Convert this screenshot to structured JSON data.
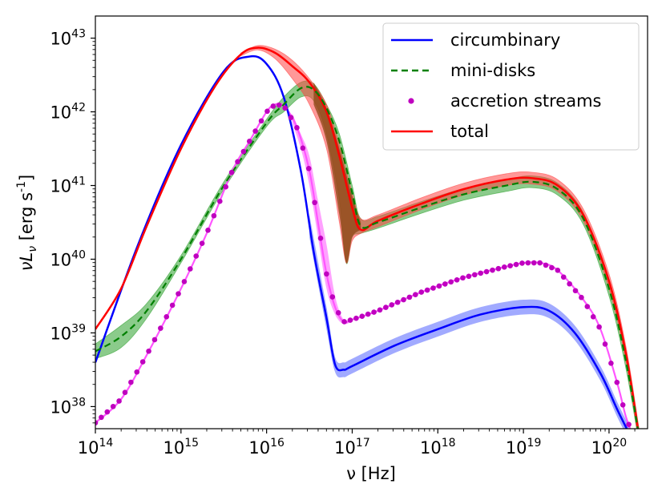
{
  "chart_data": {
    "type": "line",
    "xscale": "log",
    "yscale": "log",
    "xlim_exp": [
      14,
      20.45
    ],
    "ylim_exp": [
      37.7,
      43.3
    ],
    "x_ticks": [
      {
        "exp": 14,
        "label": "10",
        "sup": "14"
      },
      {
        "exp": 15,
        "label": "10",
        "sup": "15"
      },
      {
        "exp": 16,
        "label": "10",
        "sup": "16"
      },
      {
        "exp": 17,
        "label": "10",
        "sup": "17"
      },
      {
        "exp": 18,
        "label": "10",
        "sup": "18"
      },
      {
        "exp": 19,
        "label": "10",
        "sup": "19"
      },
      {
        "exp": 20,
        "label": "10",
        "sup": "20"
      }
    ],
    "y_ticks": [
      {
        "exp": 38,
        "label": "10",
        "sup": "38"
      },
      {
        "exp": 39,
        "label": "10",
        "sup": "39"
      },
      {
        "exp": 40,
        "label": "10",
        "sup": "40"
      },
      {
        "exp": 41,
        "label": "10",
        "sup": "41"
      },
      {
        "exp": 42,
        "label": "10",
        "sup": "42"
      },
      {
        "exp": 43,
        "label": "10",
        "sup": "43"
      }
    ],
    "xlabel": "ν [Hz]",
    "ylabel": "νL_ν [erg s^-1]",
    "legend_position": "top-right",
    "legend": [
      {
        "label": "circumbinary",
        "style": "solid",
        "color": "#0000ff"
      },
      {
        "label": "mini-disks",
        "style": "dashed",
        "color": "#008000"
      },
      {
        "label": "accretion streams",
        "style": "dots",
        "color": "#bf00bf"
      },
      {
        "label": "total",
        "style": "solid",
        "color": "#ff0000"
      }
    ],
    "series": [
      {
        "name": "circumbinary",
        "color": "#0000ff",
        "band_color": "#4455ff",
        "band_start_exp": 16.5,
        "points": [
          [
            14.0,
            38.6
          ],
          [
            14.5,
            40.2
          ],
          [
            15.0,
            41.55
          ],
          [
            15.5,
            42.55
          ],
          [
            15.8,
            42.75
          ],
          [
            16.0,
            42.65
          ],
          [
            16.2,
            42.2
          ],
          [
            16.4,
            41.2
          ],
          [
            16.55,
            40.1
          ],
          [
            16.7,
            39.2
          ],
          [
            16.8,
            38.57
          ],
          [
            16.9,
            38.5
          ],
          [
            17.0,
            38.55
          ],
          [
            17.5,
            38.83
          ],
          [
            18.0,
            39.05
          ],
          [
            18.5,
            39.25
          ],
          [
            19.0,
            39.35
          ],
          [
            19.3,
            39.3
          ],
          [
            19.6,
            39.0
          ],
          [
            19.9,
            38.45
          ],
          [
            20.1,
            37.95
          ],
          [
            20.25,
            37.6
          ]
        ],
        "band_upper": [
          [
            16.5,
            40.6
          ],
          [
            16.7,
            39.35
          ],
          [
            16.8,
            38.67
          ],
          [
            16.9,
            38.6
          ],
          [
            17.0,
            38.65
          ],
          [
            17.5,
            38.93
          ],
          [
            18.0,
            39.15
          ],
          [
            18.5,
            39.35
          ],
          [
            19.0,
            39.45
          ],
          [
            19.3,
            39.4
          ],
          [
            19.6,
            39.1
          ],
          [
            19.9,
            38.55
          ],
          [
            20.1,
            38.05
          ],
          [
            20.25,
            37.7
          ]
        ],
        "band_lower": [
          [
            16.5,
            40.3
          ],
          [
            16.7,
            39.05
          ],
          [
            16.8,
            38.47
          ],
          [
            16.9,
            38.4
          ],
          [
            17.0,
            38.45
          ],
          [
            17.5,
            38.73
          ],
          [
            18.0,
            38.95
          ],
          [
            18.5,
            39.15
          ],
          [
            19.0,
            39.25
          ],
          [
            19.3,
            39.2
          ],
          [
            19.6,
            38.9
          ],
          [
            19.9,
            38.35
          ],
          [
            20.1,
            37.85
          ],
          [
            20.25,
            37.5
          ]
        ]
      },
      {
        "name": "mini-disks",
        "color": "#008000",
        "band_color": "#2ca02c",
        "points": [
          [
            14.0,
            38.75
          ],
          [
            14.3,
            38.95
          ],
          [
            14.6,
            39.3
          ],
          [
            15.0,
            40.0
          ],
          [
            15.5,
            41.0
          ],
          [
            16.0,
            41.85
          ],
          [
            16.2,
            42.1
          ],
          [
            16.4,
            42.32
          ],
          [
            16.55,
            42.3
          ],
          [
            16.7,
            42.05
          ],
          [
            16.85,
            41.6
          ],
          [
            17.0,
            40.9
          ],
          [
            17.1,
            40.45
          ],
          [
            17.3,
            40.5
          ],
          [
            17.8,
            40.7
          ],
          [
            18.3,
            40.88
          ],
          [
            18.8,
            41.0
          ],
          [
            19.1,
            41.05
          ],
          [
            19.4,
            40.95
          ],
          [
            19.7,
            40.55
          ],
          [
            20.0,
            39.6
          ],
          [
            20.2,
            38.6
          ],
          [
            20.35,
            37.6
          ]
        ],
        "band_upper": [
          [
            14.0,
            38.85
          ],
          [
            14.3,
            39.1
          ],
          [
            14.6,
            39.4
          ],
          [
            15.0,
            40.05
          ],
          [
            15.5,
            41.05
          ],
          [
            16.0,
            41.9
          ],
          [
            16.2,
            42.2
          ],
          [
            16.4,
            42.4
          ],
          [
            16.55,
            42.38
          ],
          [
            16.7,
            42.1
          ],
          [
            16.85,
            41.7
          ],
          [
            17.0,
            41.0
          ],
          [
            17.1,
            40.55
          ],
          [
            17.3,
            40.58
          ],
          [
            17.8,
            40.78
          ],
          [
            18.3,
            40.96
          ],
          [
            18.8,
            41.08
          ],
          [
            19.1,
            41.13
          ],
          [
            19.4,
            41.03
          ],
          [
            19.7,
            40.63
          ],
          [
            20.0,
            39.7
          ],
          [
            20.2,
            38.7
          ],
          [
            20.35,
            37.7
          ]
        ],
        "band_lower": [
          [
            14.0,
            38.65
          ],
          [
            14.3,
            38.8
          ],
          [
            14.6,
            39.2
          ],
          [
            15.0,
            39.95
          ],
          [
            15.5,
            40.95
          ],
          [
            16.0,
            41.8
          ],
          [
            16.2,
            42.0
          ],
          [
            16.4,
            42.2
          ],
          [
            16.55,
            42.15
          ],
          [
            16.7,
            41.7
          ],
          [
            16.85,
            40.8
          ],
          [
            16.93,
            39.95
          ],
          [
            17.0,
            40.3
          ],
          [
            17.1,
            40.35
          ],
          [
            17.3,
            40.42
          ],
          [
            17.8,
            40.62
          ],
          [
            18.3,
            40.8
          ],
          [
            18.8,
            40.92
          ],
          [
            19.1,
            40.97
          ],
          [
            19.4,
            40.87
          ],
          [
            19.7,
            40.47
          ],
          [
            20.0,
            39.5
          ],
          [
            20.2,
            38.5
          ],
          [
            20.35,
            37.5
          ]
        ]
      },
      {
        "name": "accretion streams",
        "color": "#bf00bf",
        "band_color": "#ff44ff",
        "band_start_exp": 16.3,
        "points": [
          [
            14.0,
            37.78
          ],
          [
            14.3,
            38.1
          ],
          [
            14.6,
            38.7
          ],
          [
            15.0,
            39.6
          ],
          [
            15.3,
            40.35
          ],
          [
            15.6,
            41.2
          ],
          [
            15.8,
            41.6
          ],
          [
            16.0,
            42.0
          ],
          [
            16.1,
            42.1
          ],
          [
            16.2,
            42.08
          ],
          [
            16.35,
            41.8
          ],
          [
            16.5,
            41.2
          ],
          [
            16.6,
            40.5
          ],
          [
            16.7,
            39.8
          ],
          [
            16.8,
            39.35
          ],
          [
            16.9,
            39.15
          ],
          [
            17.0,
            39.18
          ],
          [
            17.3,
            39.3
          ],
          [
            17.8,
            39.55
          ],
          [
            18.3,
            39.75
          ],
          [
            18.8,
            39.9
          ],
          [
            19.0,
            39.95
          ],
          [
            19.2,
            39.95
          ],
          [
            19.4,
            39.85
          ],
          [
            19.7,
            39.45
          ],
          [
            19.9,
            39.05
          ],
          [
            20.1,
            38.3
          ],
          [
            20.2,
            37.85
          ],
          [
            20.3,
            37.55
          ]
        ],
        "band_upper": [
          [
            16.3,
            41.98
          ],
          [
            16.4,
            41.7
          ],
          [
            16.5,
            41.4
          ],
          [
            16.6,
            40.8
          ],
          [
            16.7,
            40.2
          ],
          [
            16.8,
            39.5
          ],
          [
            16.9,
            39.18
          ],
          [
            17.0,
            39.2
          ]
        ],
        "band_lower": [
          [
            16.3,
            41.85
          ],
          [
            16.4,
            41.5
          ],
          [
            16.5,
            41.0
          ],
          [
            16.6,
            40.3
          ],
          [
            16.7,
            39.6
          ],
          [
            16.8,
            39.25
          ],
          [
            16.9,
            39.12
          ],
          [
            17.0,
            39.16
          ]
        ]
      },
      {
        "name": "total",
        "color": "#ff0000",
        "band_color": "#ff4444",
        "points": [
          [
            14.0,
            39.05
          ],
          [
            14.3,
            39.6
          ],
          [
            14.6,
            40.45
          ],
          [
            15.0,
            41.5
          ],
          [
            15.4,
            42.35
          ],
          [
            15.7,
            42.78
          ],
          [
            15.9,
            42.87
          ],
          [
            16.1,
            42.8
          ],
          [
            16.3,
            42.62
          ],
          [
            16.5,
            42.4
          ],
          [
            16.7,
            42.0
          ],
          [
            16.85,
            41.4
          ],
          [
            17.0,
            40.7
          ],
          [
            17.1,
            40.4
          ],
          [
            17.3,
            40.52
          ],
          [
            17.8,
            40.75
          ],
          [
            18.3,
            40.95
          ],
          [
            18.8,
            41.08
          ],
          [
            19.1,
            41.1
          ],
          [
            19.4,
            41.0
          ],
          [
            19.7,
            40.6
          ],
          [
            20.0,
            39.7
          ],
          [
            20.2,
            38.7
          ],
          [
            20.35,
            37.6
          ]
        ],
        "band_upper": [
          [
            15.7,
            42.8
          ],
          [
            15.9,
            42.9
          ],
          [
            16.1,
            42.85
          ],
          [
            16.3,
            42.7
          ],
          [
            16.5,
            42.45
          ],
          [
            16.7,
            42.1
          ],
          [
            16.85,
            41.55
          ],
          [
            17.0,
            40.9
          ],
          [
            17.1,
            40.55
          ],
          [
            17.3,
            40.6
          ],
          [
            17.8,
            40.83
          ],
          [
            18.3,
            41.03
          ],
          [
            18.8,
            41.16
          ],
          [
            19.1,
            41.18
          ],
          [
            19.4,
            41.08
          ],
          [
            19.7,
            40.68
          ],
          [
            20.0,
            39.8
          ],
          [
            20.2,
            38.8
          ],
          [
            20.35,
            37.7
          ]
        ],
        "band_lower": [
          [
            15.7,
            42.76
          ],
          [
            15.9,
            42.84
          ],
          [
            16.1,
            42.72
          ],
          [
            16.3,
            42.45
          ],
          [
            16.5,
            42.1
          ],
          [
            16.7,
            41.5
          ],
          [
            16.85,
            40.5
          ],
          [
            16.93,
            39.95
          ],
          [
            17.0,
            40.25
          ],
          [
            17.1,
            40.35
          ],
          [
            17.3,
            40.44
          ],
          [
            17.8,
            40.67
          ],
          [
            18.3,
            40.87
          ],
          [
            18.8,
            41.0
          ],
          [
            19.1,
            41.02
          ],
          [
            19.4,
            40.92
          ],
          [
            19.7,
            40.52
          ],
          [
            20.0,
            39.6
          ],
          [
            20.2,
            38.6
          ],
          [
            20.35,
            37.5
          ]
        ]
      }
    ],
    "overlap_band": {
      "color": "#8b4513",
      "upper": [
        [
          16.55,
          42.4
        ],
        [
          16.7,
          42.05
        ],
        [
          16.85,
          41.5
        ],
        [
          17.0,
          40.85
        ],
        [
          17.1,
          40.5
        ]
      ],
      "lower": [
        [
          16.55,
          42.1
        ],
        [
          16.7,
          41.6
        ],
        [
          16.85,
          40.6
        ],
        [
          16.93,
          39.95
        ],
        [
          17.0,
          40.3
        ],
        [
          17.1,
          40.4
        ]
      ]
    }
  }
}
